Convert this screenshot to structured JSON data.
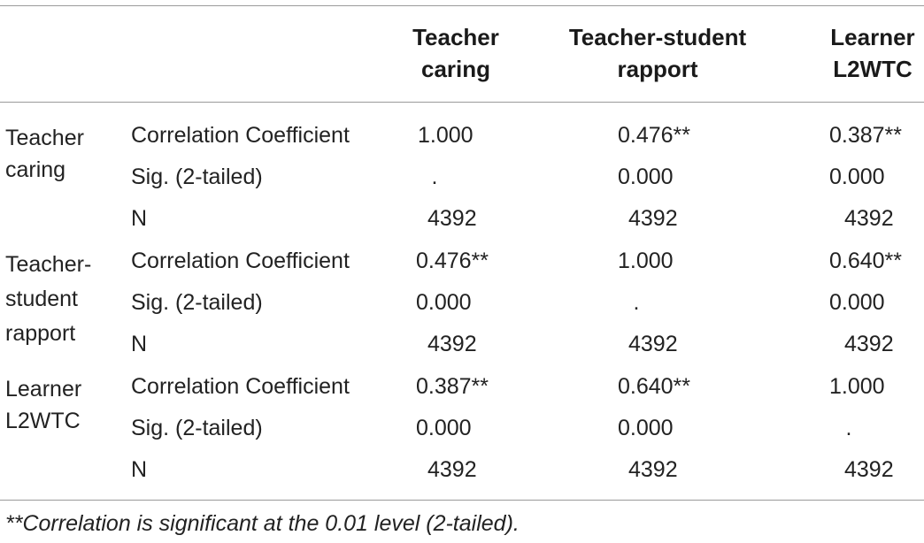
{
  "table": {
    "columns": [
      "Teacher caring",
      "Teacher-student rapport",
      "Learner L2WTC"
    ],
    "column_lines": [
      [
        "Teacher",
        "caring"
      ],
      [
        "Teacher-student",
        "rapport"
      ],
      [
        "Learner",
        "L2WTC"
      ]
    ],
    "row_groups": [
      {
        "name_lines": [
          "Teacher",
          "caring"
        ],
        "rows": [
          {
            "stat": "Correlation Coefficient",
            "values": [
              "1.000",
              "0.476**",
              "0.387**"
            ]
          },
          {
            "stat": "Sig. (2-tailed)",
            "values": [
              ".",
              "0.000",
              "0.000"
            ]
          },
          {
            "stat": "N",
            "values": [
              "4392",
              "4392",
              "4392"
            ]
          }
        ]
      },
      {
        "name_lines": [
          "Teacher-",
          "student",
          "rapport"
        ],
        "rows": [
          {
            "stat": "Correlation Coefficient",
            "values": [
              "0.476**",
              "1.000",
              "0.640**"
            ]
          },
          {
            "stat": "Sig. (2-tailed)",
            "values": [
              "0.000",
              ".",
              "0.000"
            ]
          },
          {
            "stat": "N",
            "values": [
              "4392",
              "4392",
              "4392"
            ]
          }
        ]
      },
      {
        "name_lines": [
          "Learner",
          "L2WTC"
        ],
        "rows": [
          {
            "stat": "Correlation Coefficient",
            "values": [
              "0.387**",
              "0.640**",
              "1.000"
            ]
          },
          {
            "stat": "Sig. (2-tailed)",
            "values": [
              "0.000",
              "0.000",
              "."
            ]
          },
          {
            "stat": "N",
            "values": [
              "4392",
              "4392",
              "4392"
            ]
          }
        ]
      }
    ],
    "footnote": "**Correlation is significant at the 0.01 level (2-tailed)."
  }
}
